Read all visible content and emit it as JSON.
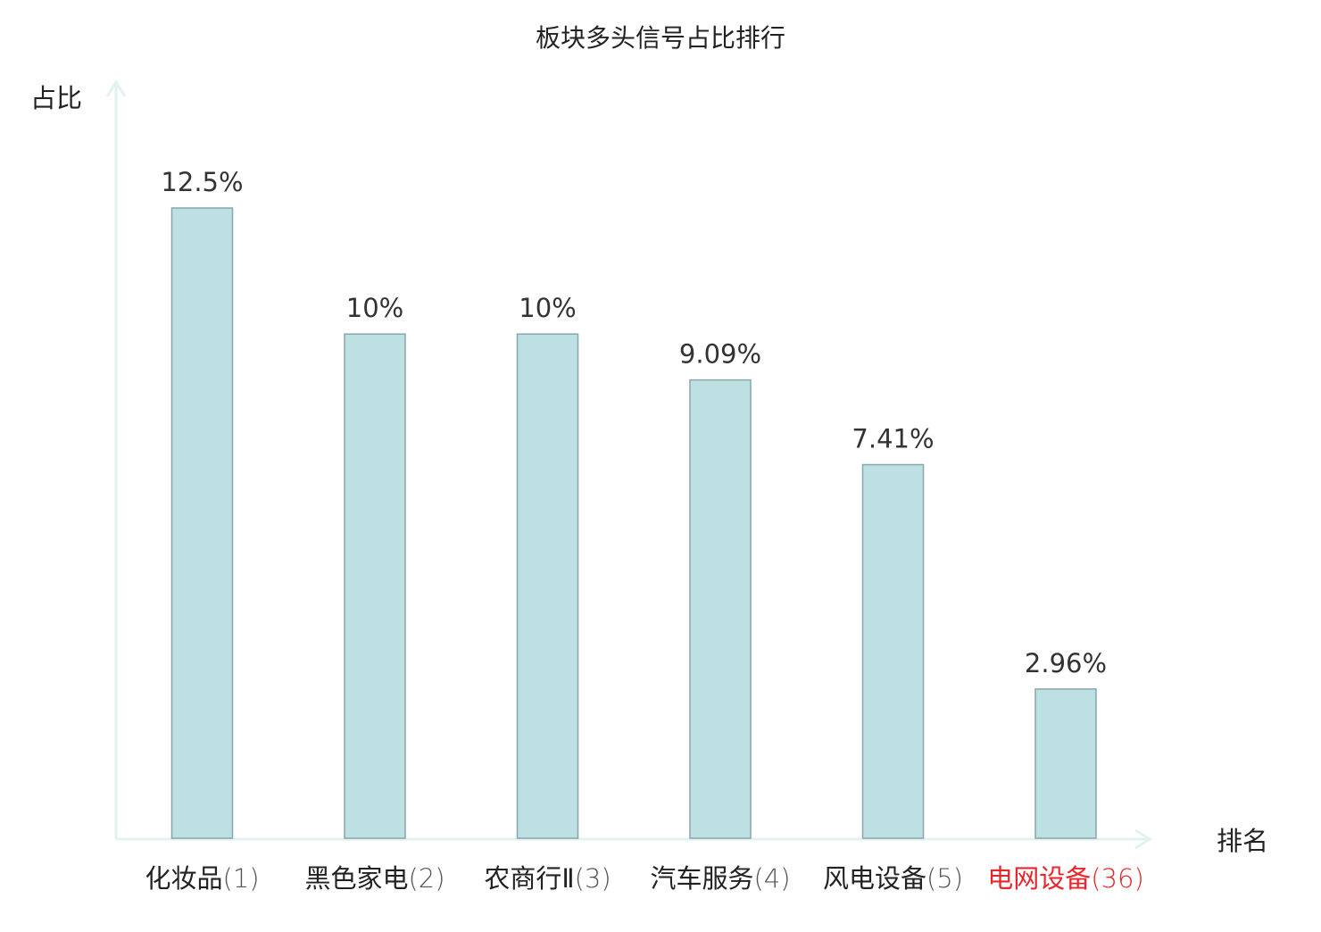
{
  "chart_data": {
    "type": "bar",
    "title": "板块多头信号占比排行",
    "ylabel": "占比",
    "xlabel": "排名",
    "categories": [
      "化妆品",
      "黑色家电",
      "农商行Ⅱ",
      "汽车服务",
      "风电设备",
      "电网设备"
    ],
    "ranks": [
      "(1)",
      "(2)",
      "(3)",
      "(4)",
      "(5)",
      "(36)"
    ],
    "values": [
      12.5,
      10,
      10,
      9.09,
      7.41,
      2.96
    ],
    "value_labels": [
      "12.5%",
      "10%",
      "10%",
      "9.09%",
      "7.41%",
      "2.96%"
    ],
    "highlight_index": 5,
    "ylim": [
      0,
      15
    ],
    "grid": false,
    "legend": "none",
    "colors": {
      "bar_fill": "#bde0e2",
      "bar_stroke": "#89a6aa",
      "axis": "#e1f2f0",
      "text": "#222222",
      "value_text": "#333333",
      "highlight": "#e8262b"
    }
  }
}
